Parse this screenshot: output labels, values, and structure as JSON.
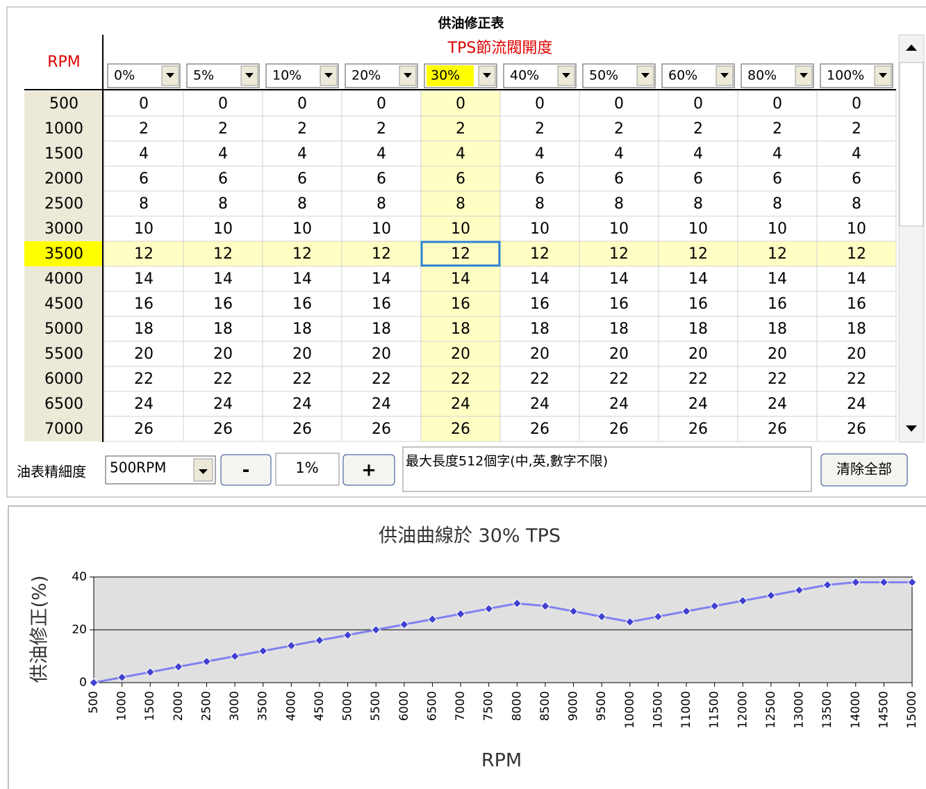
{
  "title": "供油修正表",
  "table": {
    "row_header": "RPM",
    "column_header": "TPS節流閥開度",
    "columns": [
      "0%",
      "5%",
      "10%",
      "20%",
      "30%",
      "40%",
      "50%",
      "60%",
      "80%",
      "100%"
    ],
    "rows": [
      {
        "rpm": "500",
        "cells": [
          "0",
          "0",
          "0",
          "0",
          "0",
          "0",
          "0",
          "0",
          "0",
          "0"
        ]
      },
      {
        "rpm": "1000",
        "cells": [
          "2",
          "2",
          "2",
          "2",
          "2",
          "2",
          "2",
          "2",
          "2",
          "2"
        ]
      },
      {
        "rpm": "1500",
        "cells": [
          "4",
          "4",
          "4",
          "4",
          "4",
          "4",
          "4",
          "4",
          "4",
          "4"
        ]
      },
      {
        "rpm": "2000",
        "cells": [
          "6",
          "6",
          "6",
          "6",
          "6",
          "6",
          "6",
          "6",
          "6",
          "6"
        ]
      },
      {
        "rpm": "2500",
        "cells": [
          "8",
          "8",
          "8",
          "8",
          "8",
          "8",
          "8",
          "8",
          "8",
          "8"
        ]
      },
      {
        "rpm": "3000",
        "cells": [
          "10",
          "10",
          "10",
          "10",
          "10",
          "10",
          "10",
          "10",
          "10",
          "10"
        ]
      },
      {
        "rpm": "3500",
        "cells": [
          "12",
          "12",
          "12",
          "12",
          "12",
          "12",
          "12",
          "12",
          "12",
          "12"
        ]
      },
      {
        "rpm": "4000",
        "cells": [
          "14",
          "14",
          "14",
          "14",
          "14",
          "14",
          "14",
          "14",
          "14",
          "14"
        ]
      },
      {
        "rpm": "4500",
        "cells": [
          "16",
          "16",
          "16",
          "16",
          "16",
          "16",
          "16",
          "16",
          "16",
          "16"
        ]
      },
      {
        "rpm": "5000",
        "cells": [
          "18",
          "18",
          "18",
          "18",
          "18",
          "18",
          "18",
          "18",
          "18",
          "18"
        ]
      },
      {
        "rpm": "5500",
        "cells": [
          "20",
          "20",
          "20",
          "20",
          "20",
          "20",
          "20",
          "20",
          "20",
          "20"
        ]
      },
      {
        "rpm": "6000",
        "cells": [
          "22",
          "22",
          "22",
          "22",
          "22",
          "22",
          "22",
          "22",
          "22",
          "22"
        ]
      },
      {
        "rpm": "6500",
        "cells": [
          "24",
          "24",
          "24",
          "24",
          "24",
          "24",
          "24",
          "24",
          "24",
          "24"
        ]
      },
      {
        "rpm": "7000",
        "cells": [
          "26",
          "26",
          "26",
          "26",
          "26",
          "26",
          "26",
          "26",
          "26",
          "26"
        ]
      }
    ]
  },
  "controls": {
    "resolution_label": "油表精細度",
    "resolution": "500RPM",
    "minus": "-",
    "step": "1%",
    "plus": "+",
    "note": "最大長度512個字(中,英,數字不限)",
    "clear": "清除全部"
  },
  "chart_data": {
    "type": "line",
    "title": "供油曲線於 30% TPS",
    "x_label": "RPM",
    "y_label": "供油修正(%)",
    "x": [
      500,
      1000,
      1500,
      2000,
      2500,
      3000,
      3500,
      4000,
      4500,
      5000,
      5500,
      6000,
      6500,
      7000,
      7500,
      8000,
      8500,
      9000,
      9500,
      10000,
      10500,
      11000,
      11500,
      12000,
      12500,
      13000,
      13500,
      14000,
      14500,
      15000
    ],
    "series": [
      {
        "name": "30% TPS",
        "color": "#8080f0",
        "values": [
          0,
          2,
          4,
          6,
          8,
          10,
          12,
          14,
          16,
          18,
          20,
          22,
          24,
          26,
          28,
          30,
          29,
          27,
          25,
          23,
          25,
          27,
          29,
          31,
          33,
          35,
          37,
          38,
          38,
          38
        ]
      }
    ],
    "xlim": [
      500,
      15000
    ],
    "xticks": [
      500,
      1000,
      1500,
      2000,
      2500,
      3000,
      3500,
      4000,
      4500,
      5000,
      5500,
      6000,
      6500,
      7000,
      7500,
      8000,
      8500,
      9000,
      9500,
      10000,
      10500,
      11000,
      11500,
      12000,
      12500,
      13000,
      13500,
      14000,
      14500,
      15000
    ],
    "ylim": [
      0,
      40
    ],
    "yticks": [
      0,
      20,
      40
    ],
    "grid": true
  }
}
